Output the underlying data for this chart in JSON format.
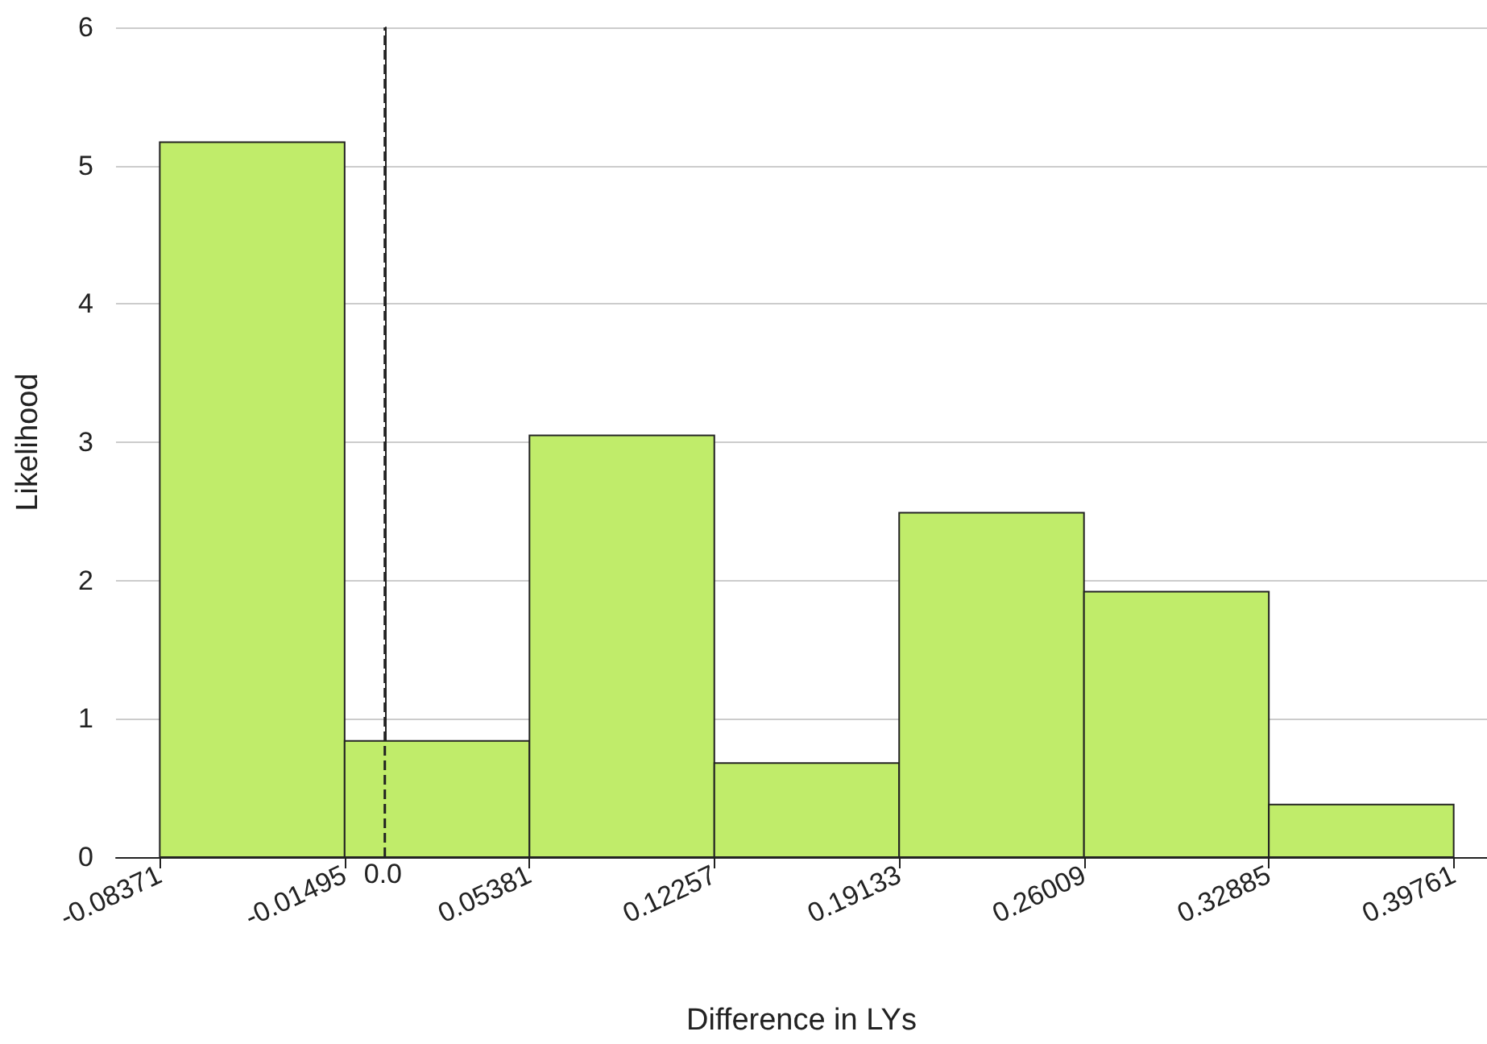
{
  "chart_data": {
    "type": "histogram",
    "xlabel": "Difference in LYs",
    "ylabel": "Likelihood",
    "bins": [
      -0.08371,
      -0.01495,
      0.05381,
      0.12257,
      0.19133,
      0.26009,
      0.32885,
      0.39761
    ],
    "values": [
      5.17,
      0.84,
      3.05,
      0.68,
      2.49,
      1.92,
      0.38
    ],
    "color": "#c0ec6a",
    "xlim": [
      -0.1,
      0.41
    ],
    "xticks": [
      -0.08371,
      -0.01495,
      0.05381,
      0.12257,
      0.19133,
      0.26009,
      0.32885,
      0.39761
    ],
    "ylim": [
      0,
      6
    ],
    "yticks": [
      0,
      1,
      2,
      3,
      4,
      5,
      6
    ],
    "ref_lines": [
      {
        "axis": "x",
        "value": 0,
        "label": "0.0",
        "color": "#222222",
        "line_style": "dashed"
      }
    ],
    "grid": "y"
  }
}
